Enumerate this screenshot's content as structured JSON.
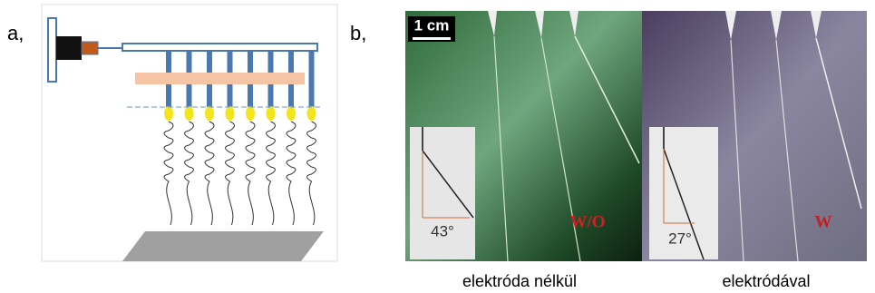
{
  "panel_a": {
    "label": "a,"
  },
  "panel_b": {
    "label": "b,",
    "scale_bar": "1 cm",
    "left": {
      "tag": "W/O",
      "angle": "43°",
      "caption": "elektróda nélkül"
    },
    "right": {
      "tag": "W",
      "angle": "27°",
      "caption": "elektródával"
    }
  }
}
